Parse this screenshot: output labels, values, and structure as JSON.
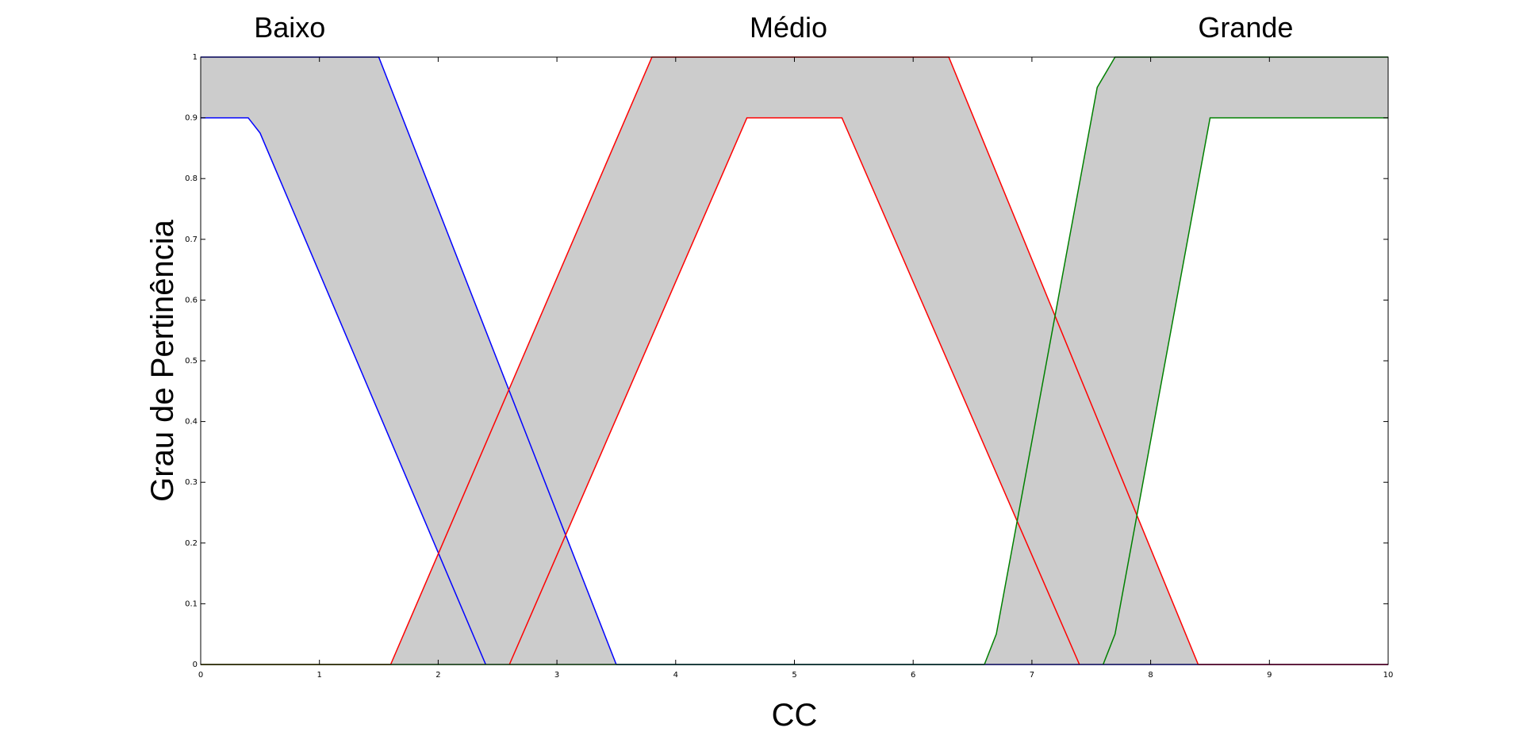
{
  "chart_data": {
    "type": "line",
    "title": "",
    "xlabel": "CC",
    "ylabel": "Grau de Pertinência",
    "xlim": [
      0,
      10
    ],
    "ylim": [
      0,
      1
    ],
    "grid": false,
    "xticks": [
      "0",
      "1",
      "2",
      "3",
      "4",
      "5",
      "6",
      "7",
      "8",
      "9",
      "10"
    ],
    "yticks": [
      "0",
      "0.1",
      "0.2",
      "0.3",
      "0.4",
      "0.5",
      "0.6",
      "0.7",
      "0.8",
      "0.9",
      "1"
    ],
    "colors": {
      "band": "#cccccc",
      "baixo": "#0000ff",
      "medio": "#ff0000",
      "grande": "#008000"
    },
    "sets": [
      {
        "label": "Baixo",
        "label_x": 0.75,
        "color": "#0000ff",
        "upper": [
          [
            0,
            1
          ],
          [
            1.5,
            1
          ],
          [
            3.5,
            0
          ]
        ],
        "lower": [
          [
            0,
            0.9
          ],
          [
            0.4,
            0.9
          ],
          [
            0.5,
            0.875
          ],
          [
            2.4,
            0
          ]
        ]
      },
      {
        "label": "Médio",
        "label_x": 4.95,
        "color": "#ff0000",
        "upper": [
          [
            1.6,
            0
          ],
          [
            3.8,
            1
          ],
          [
            6.3,
            1
          ],
          [
            8.4,
            0
          ]
        ],
        "lower": [
          [
            2.6,
            0
          ],
          [
            4.6,
            0.9
          ],
          [
            5.4,
            0.9
          ],
          [
            7.4,
            0
          ]
        ]
      },
      {
        "label": "Grande",
        "label_x": 8.8,
        "color": "#008000",
        "upper": [
          [
            6.6,
            0
          ],
          [
            6.7,
            0.05
          ],
          [
            7.55,
            0.95
          ],
          [
            7.7,
            1
          ],
          [
            10,
            1
          ]
        ],
        "lower": [
          [
            7.6,
            0
          ],
          [
            7.7,
            0.05
          ],
          [
            8.5,
            0.9
          ],
          [
            10,
            0.9
          ]
        ]
      }
    ]
  }
}
